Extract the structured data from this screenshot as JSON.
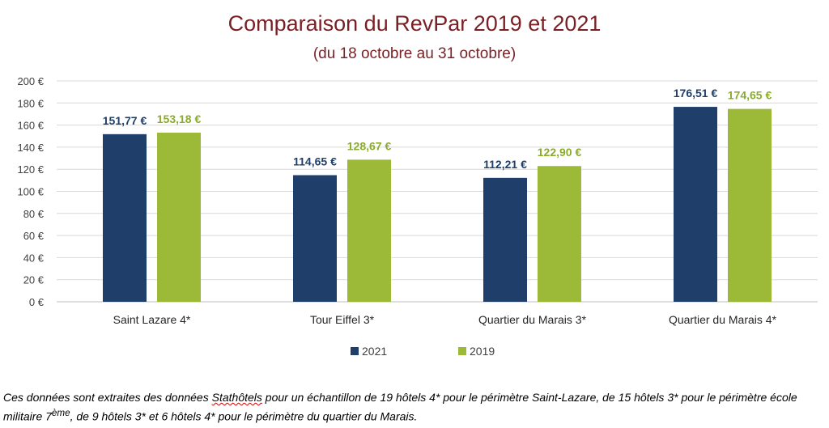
{
  "chart_data": {
    "type": "bar",
    "title": "Comparaison du RevPar 2019 et 2021",
    "subtitle": "(du 18 octobre au 31 octobre)",
    "categories": [
      "Saint Lazare 4*",
      "Tour Eiffel 3*",
      "Quartier du Marais 3*",
      "Quartier du Marais 4*"
    ],
    "series": [
      {
        "name": "2021",
        "color": "#1f3f6a",
        "values": [
          151.77,
          114.65,
          112.21,
          176.51
        ],
        "labels": [
          "151,77 €",
          "114,65 €",
          "112,21 €",
          "176,51 €"
        ]
      },
      {
        "name": "2019",
        "color": "#9cba38",
        "values": [
          153.18,
          128.67,
          122.9,
          174.65
        ],
        "labels": [
          "153,18 €",
          "128,67 €",
          "122,90 €",
          "174,65 €"
        ]
      }
    ],
    "ylim": [
      0,
      200
    ],
    "yticks": [
      0,
      20,
      40,
      60,
      80,
      100,
      120,
      140,
      160,
      180,
      200
    ],
    "ytick_labels": [
      "0 €",
      "20 €",
      "40 €",
      "60 €",
      "80 €",
      "100 €",
      "120 €",
      "140 €",
      "160 €",
      "180 €",
      "200 €"
    ],
    "grid": true,
    "legend": "bottom-center",
    "xlabel": "",
    "ylabel": ""
  },
  "footnote": {
    "part1": "Ces données sont extraites des données ",
    "brand": "Stathôtels",
    "part2": " pour un échantillon de 19 hôtels 4* pour le périmètre Saint-Lazare, de 15 hôtels 3* pour le périmètre école militaire 7",
    "superscript": "ème",
    "part3": ", de 9 hôtels 3* et 6 hôtels 4* pour le périmètre du quartier du Marais."
  }
}
